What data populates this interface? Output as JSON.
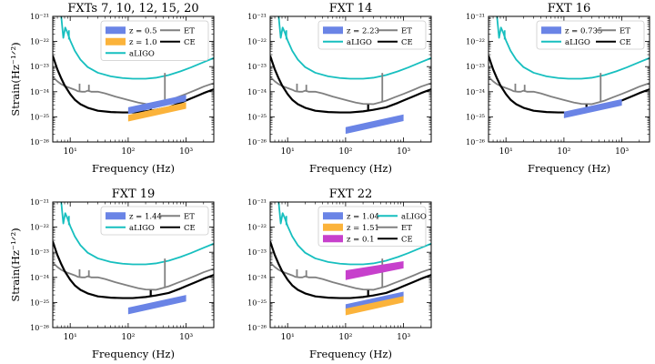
{
  "figure": {
    "colors": {
      "aLIGO": "#17bfbf",
      "ET": "#808080",
      "CE": "#000000",
      "blue": "#6a84e6",
      "orange": "#fbb33b",
      "magenta": "#c740cc"
    }
  },
  "chart_data": [
    {
      "type": "line",
      "title": "FXTs 7, 10, 12, 15, 20",
      "xlabel": "Frequency (Hz)",
      "ylabel": "Strain(Hz^-1/2)",
      "xscale": "log",
      "yscale": "log",
      "xlim": [
        5,
        3000
      ],
      "ylim": [
        1e-26,
        1e-21
      ],
      "x_ticks": [
        "10^1",
        "10^2",
        "10^3"
      ],
      "y_ticks": [
        "10^-26",
        "10^-25",
        "10^-24",
        "10^-23",
        "10^-22",
        "10^-21"
      ],
      "legend_position": "top-right",
      "legend_columns": 2,
      "legend_entries": [
        {
          "label": "z = 0.5",
          "kind": "band",
          "color": "blue"
        },
        {
          "label": "ET",
          "kind": "line",
          "color": "ET"
        },
        {
          "label": "z = 1.0",
          "kind": "band",
          "color": "orange"
        },
        {
          "label": "CE",
          "kind": "line",
          "color": "CE"
        },
        {
          "label": "aLIGO",
          "kind": "line",
          "color": "aLIGO"
        }
      ],
      "bands": [
        {
          "name": "z = 0.5",
          "color": "blue",
          "x": [
            100,
            1000
          ],
          "upper": [
            2.4e-25,
            7.6e-25
          ],
          "lower": [
            1.3e-25,
            4.2e-25
          ]
        },
        {
          "name": "z = 1.0",
          "color": "orange",
          "x": [
            100,
            1000
          ],
          "upper": [
            1.2e-25,
            3.8e-25
          ],
          "lower": [
            6.5e-26,
            2.1e-25
          ]
        }
      ]
    },
    {
      "type": "line",
      "title": "FXT 14",
      "xlabel": "Frequency (Hz)",
      "ylabel": "",
      "xscale": "log",
      "yscale": "log",
      "xlim": [
        5,
        3000
      ],
      "ylim": [
        1e-26,
        1e-21
      ],
      "x_ticks": [
        "10^1",
        "10^2",
        "10^3"
      ],
      "y_ticks": [
        "10^-26",
        "10^-25",
        "10^-24",
        "10^-23",
        "10^-22",
        "10^-21"
      ],
      "legend_position": "top-right",
      "legend_columns": 2,
      "legend_entries": [
        {
          "label": "z = 2.23",
          "kind": "band",
          "color": "blue"
        },
        {
          "label": "ET",
          "kind": "line",
          "color": "ET"
        },
        {
          "label": "aLIGO",
          "kind": "line",
          "color": "aLIGO"
        },
        {
          "label": "CE",
          "kind": "line",
          "color": "CE"
        }
      ],
      "bands": [
        {
          "name": "z = 2.23",
          "color": "blue",
          "x": [
            100,
            1000
          ],
          "upper": [
            3.9e-26,
            1.25e-25
          ],
          "lower": [
            2.1e-26,
            6.8e-26
          ]
        }
      ]
    },
    {
      "type": "line",
      "title": "FXT 16",
      "xlabel": "Frequency (Hz)",
      "ylabel": "",
      "xscale": "log",
      "yscale": "log",
      "xlim": [
        5,
        3000
      ],
      "ylim": [
        1e-26,
        1e-21
      ],
      "x_ticks": [
        "10^1",
        "10^2",
        "10^3"
      ],
      "y_ticks": [
        "10^-26",
        "10^-25",
        "10^-24",
        "10^-23",
        "10^-22",
        "10^-21"
      ],
      "legend_position": "top-right",
      "legend_columns": 2,
      "legend_entries": [
        {
          "label": "z = 0.735",
          "kind": "band",
          "color": "blue"
        },
        {
          "label": "ET",
          "kind": "line",
          "color": "ET"
        },
        {
          "label": "aLIGO",
          "kind": "line",
          "color": "aLIGO"
        },
        {
          "label": "CE",
          "kind": "line",
          "color": "CE"
        }
      ],
      "bands": [
        {
          "name": "z = 0.735",
          "color": "blue",
          "x": [
            100,
            1000
          ],
          "upper": [
            1.6e-25,
            5.1e-25
          ],
          "lower": [
            8.8e-26,
            2.8e-25
          ]
        }
      ]
    },
    {
      "type": "line",
      "title": "FXT 19",
      "xlabel": "Frequency (Hz)",
      "ylabel": "Strain(Hz^-1/2)",
      "xscale": "log",
      "yscale": "log",
      "xlim": [
        5,
        3000
      ],
      "ylim": [
        1e-26,
        1e-21
      ],
      "x_ticks": [
        "10^1",
        "10^2",
        "10^3"
      ],
      "y_ticks": [
        "10^-26",
        "10^-25",
        "10^-24",
        "10^-23",
        "10^-22",
        "10^-21"
      ],
      "legend_position": "top-right",
      "legend_columns": 2,
      "legend_entries": [
        {
          "label": "z = 1.44",
          "kind": "band",
          "color": "blue"
        },
        {
          "label": "ET",
          "kind": "line",
          "color": "ET"
        },
        {
          "label": "aLIGO",
          "kind": "line",
          "color": "aLIGO"
        },
        {
          "label": "CE",
          "kind": "line",
          "color": "CE"
        }
      ],
      "bands": [
        {
          "name": "z = 1.44",
          "color": "blue",
          "x": [
            100,
            1000
          ],
          "upper": [
            6.3e-26,
            2e-25
          ],
          "lower": [
            3.4e-26,
            1.1e-25
          ]
        }
      ]
    },
    {
      "type": "line",
      "title": "FXT 22",
      "xlabel": "Frequency (Hz)",
      "ylabel": "",
      "xscale": "log",
      "yscale": "log",
      "xlim": [
        5,
        3000
      ],
      "ylim": [
        1e-26,
        1e-21
      ],
      "x_ticks": [
        "10^1",
        "10^2",
        "10^3"
      ],
      "y_ticks": [
        "10^-26",
        "10^-25",
        "10^-24",
        "10^-23",
        "10^-22",
        "10^-21"
      ],
      "legend_position": "top-right",
      "legend_columns": 2,
      "legend_entries": [
        {
          "label": "z = 1.04",
          "kind": "band",
          "color": "blue"
        },
        {
          "label": "aLIGO",
          "kind": "line",
          "color": "aLIGO"
        },
        {
          "label": "z = 1.51",
          "kind": "band",
          "color": "orange"
        },
        {
          "label": "ET",
          "kind": "line",
          "color": "ET"
        },
        {
          "label": "z = 0.1",
          "kind": "band",
          "color": "magenta"
        },
        {
          "label": "CE",
          "kind": "line",
          "color": "CE"
        }
      ],
      "bands": [
        {
          "name": "z = 1.04",
          "color": "blue",
          "x": [
            100,
            1000
          ],
          "upper": [
            8.5e-26,
            2.7e-25
          ],
          "lower": [
            4.6e-26,
            1.5e-25
          ]
        },
        {
          "name": "z = 1.51",
          "color": "orange",
          "x": [
            100,
            1000
          ],
          "upper": [
            5.7e-26,
            1.8e-25
          ],
          "lower": [
            3.1e-26,
            1e-25
          ]
        },
        {
          "name": "z = 0.1",
          "color": "magenta",
          "x": [
            100,
            1000
          ],
          "upper": [
            1.9e-24,
            4.4e-24
          ],
          "lower": [
            7.8e-25,
            2.3e-24
          ]
        }
      ]
    }
  ],
  "curves": {
    "aLIGO": {
      "x": [
        7,
        7.6,
        8.2,
        9,
        10,
        12,
        15,
        20,
        30,
        50,
        80,
        120,
        200,
        300,
        500,
        800,
        1200,
        2000,
        3000
      ],
      "y": [
        1e-21,
        1.4e-22,
        3.6e-22,
        2.2e-22,
        1.1e-22,
        4.3e-23,
        1.9e-23,
        9.6e-24,
        5.7e-24,
        4.1e-24,
        3.5e-24,
        3.3e-24,
        3.3e-24,
        3.6e-24,
        4.6e-24,
        6.5e-24,
        9.2e-24,
        1.5e-23,
        2.2e-23
      ],
      "spikes": [
        [
          9.5,
          1.2e-22,
          2.8e-22
        ]
      ]
    },
    "ET": {
      "x": [
        5,
        6,
        7,
        8,
        10,
        12,
        13.5,
        16,
        18,
        20,
        23,
        30,
        40,
        60,
        100,
        150,
        200,
        300,
        400,
        500,
        700,
        1000,
        1500,
        2000,
        3000
      ],
      "y": [
        3.9e-24,
        2.6e-24,
        2e-24,
        1.7e-24,
        1.4e-24,
        1.2e-24,
        1.05e-24,
        1e-24,
        1e-24,
        1.1e-24,
        1e-24,
        1e-24,
        8.6e-25,
        6.4e-25,
        4.7e-25,
        3.7e-25,
        3.3e-25,
        3.2e-25,
        3.8e-25,
        4.4e-25,
        6e-25,
        8.2e-25,
        1.2e-24,
        1.6e-24,
        2.2e-24
      ],
      "spikes": [
        [
          14.5,
          1.05e-24,
          2.1e-24
        ],
        [
          21,
          1.05e-24,
          1.9e-24
        ],
        [
          430,
          3.9e-25,
          5.6e-24
        ]
      ]
    },
    "CE": {
      "x": [
        5,
        5.5,
        6,
        7,
        8,
        10,
        12,
        15,
        20,
        30,
        50,
        80,
        120,
        200,
        300,
        500,
        800,
        1000,
        1500,
        2000,
        3000
      ],
      "y": [
        2.7e-23,
        1.4e-23,
        7.8e-24,
        3.4e-24,
        1.8e-24,
        8e-25,
        4.8e-25,
        3.2e-25,
        2.3e-25,
        1.75e-25,
        1.55e-25,
        1.5e-25,
        1.5e-25,
        1.65e-25,
        1.9e-25,
        2.4e-25,
        3.6e-25,
        4.5e-25,
        6.6e-25,
        8.8e-25,
        1.25e-24
      ],
      "spikes": [
        [
          245,
          1.75e-25,
          3.1e-25
        ]
      ]
    }
  }
}
